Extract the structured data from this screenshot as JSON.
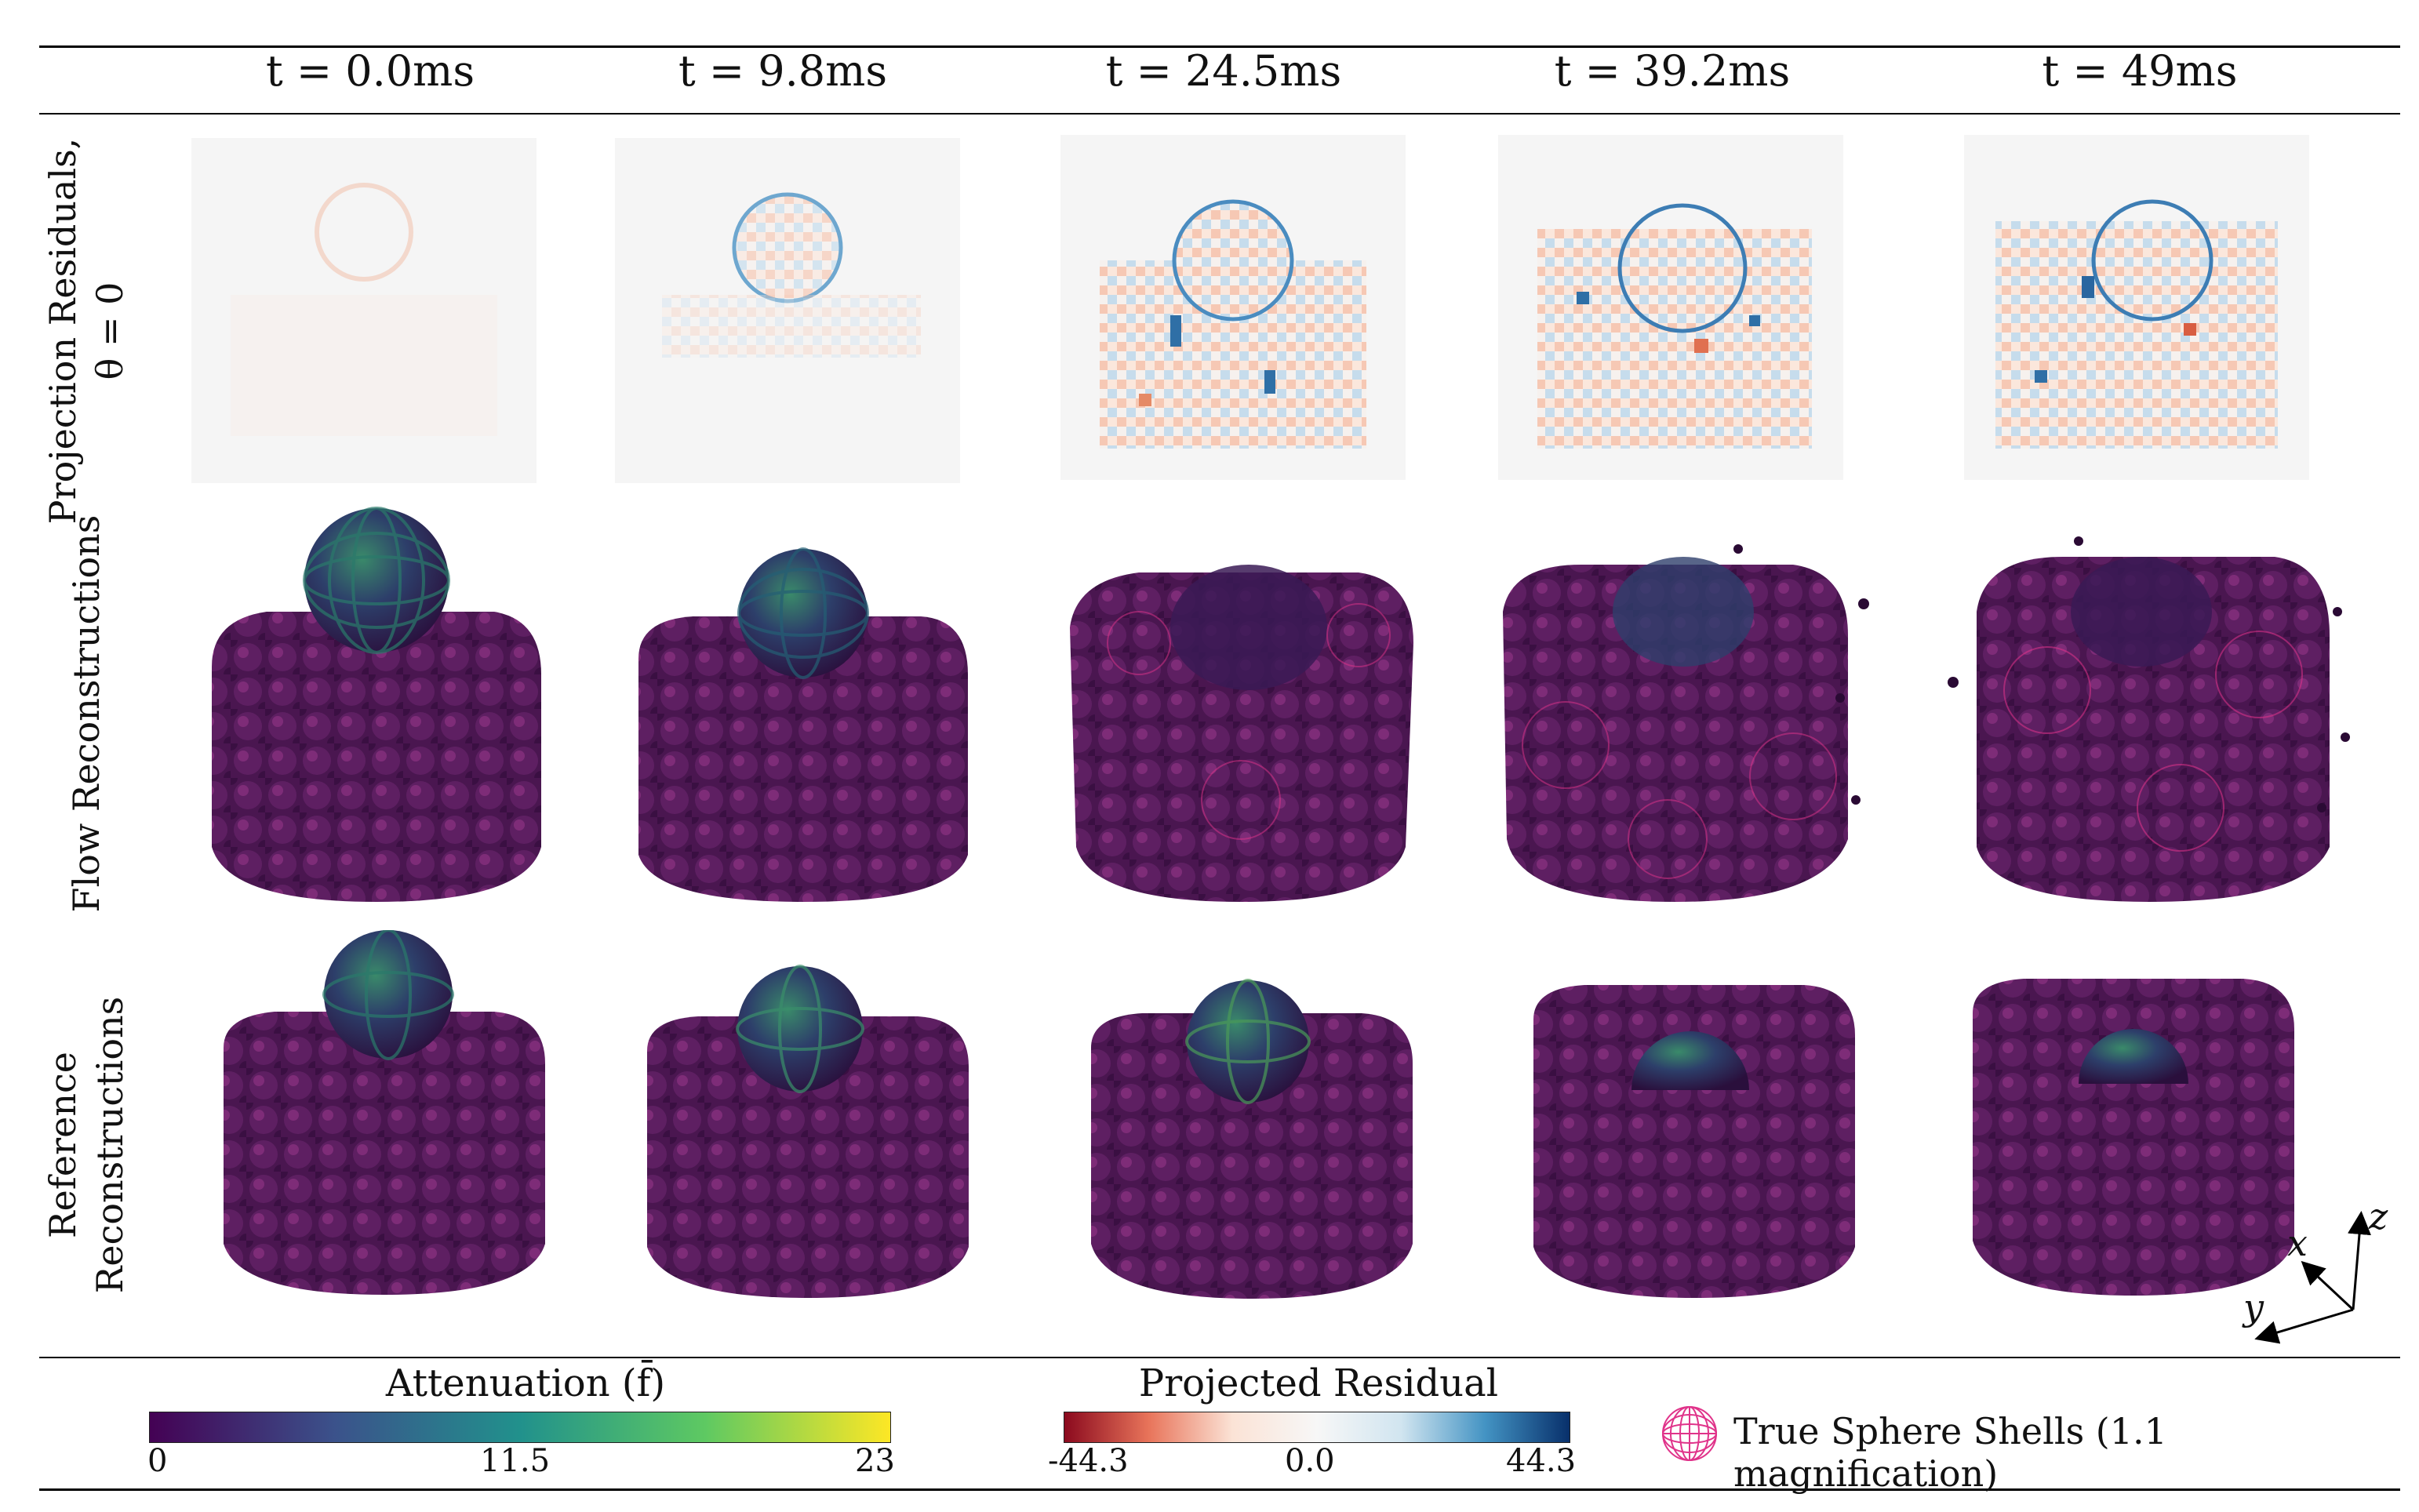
{
  "columns": [
    {
      "label": "t = 0.0ms"
    },
    {
      "label": "t = 9.8ms"
    },
    {
      "label": "t = 24.5ms"
    },
    {
      "label": "t = 39.2ms"
    },
    {
      "label": "t = 49ms"
    }
  ],
  "rows": [
    {
      "label": "Projection Residuals, θ = 0"
    },
    {
      "label": "Flow Reconstructions"
    },
    {
      "label": "Reference Reconstructions"
    }
  ],
  "colorbars": {
    "attenuation": {
      "title": "Attenuation (f̄)",
      "min": "0",
      "mid": "11.5",
      "max": "23",
      "colors": [
        "#440154",
        "#3b528b",
        "#21918c",
        "#5ec962",
        "#fde725"
      ]
    },
    "residual": {
      "title": "Projected Residual",
      "min": "-44.3",
      "mid": "0.0",
      "max": "44.3",
      "colors": [
        "#8b0a1e",
        "#e8745a",
        "#fbe3d6",
        "#f7f7f7",
        "#d1e5f0",
        "#4393c3",
        "#08306b"
      ]
    }
  },
  "legend": {
    "label": "True Sphere Shells (1.1 magnification)",
    "icon": "wireframe-sphere-icon",
    "color": "#e0338a"
  },
  "axes": {
    "x": "x",
    "y": "y",
    "z": "z"
  }
}
